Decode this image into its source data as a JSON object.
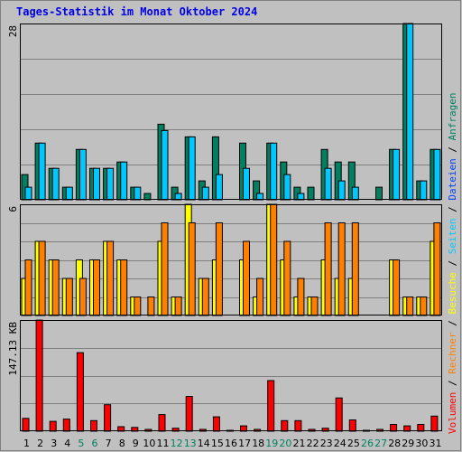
{
  "chart_data": {
    "type": "bar",
    "title": "Tages-Statistik im Monat Oktober 2024",
    "days": [
      "1",
      "2",
      "3",
      "4",
      "5",
      "6",
      "7",
      "8",
      "9",
      "10",
      "11",
      "12",
      "13",
      "14",
      "15",
      "16",
      "17",
      "18",
      "19",
      "20",
      "21",
      "22",
      "23",
      "24",
      "25",
      "26",
      "27",
      "28",
      "29",
      "30",
      "31"
    ],
    "weekend_days": [
      "5",
      "6",
      "12",
      "13",
      "19",
      "20",
      "26",
      "27"
    ],
    "panels": [
      {
        "max_label": "28",
        "ylim": [
          0,
          28
        ],
        "series": [
          {
            "name": "Anfragen",
            "color": "#008060",
            "values": [
              4,
              9,
              5,
              2,
              8,
              5,
              5,
              6,
              2,
              1,
              12,
              2,
              10,
              3,
              10,
              0,
              9,
              3,
              9,
              6,
              2,
              2,
              8,
              6,
              6,
              0,
              2,
              8,
              28,
              3,
              8
            ]
          },
          {
            "name": "Dateien",
            "color": "#00c8ff",
            "values": [
              2,
              9,
              5,
              2,
              8,
              5,
              5,
              6,
              2,
              0,
              11,
              1,
              10,
              2,
              4,
              0,
              5,
              1,
              9,
              4,
              1,
              0,
              5,
              3,
              2,
              0,
              0,
              8,
              28,
              3,
              8
            ]
          }
        ]
      },
      {
        "max_label": "6",
        "ylim": [
          0,
          6
        ],
        "series": [
          {
            "name": "Seiten",
            "color": "#ffff00",
            "values": [
              2,
              4,
              3,
              2,
              3,
              3,
              4,
              3,
              1,
              0,
              4,
              1,
              6,
              2,
              3,
              0,
              3,
              1,
              6,
              3,
              1,
              1,
              3,
              2,
              2,
              0,
              0,
              3,
              1,
              1,
              4
            ]
          },
          {
            "name": "Besuche",
            "color": "#ff8000",
            "values": [
              3,
              4,
              3,
              2,
              2,
              3,
              4,
              3,
              1,
              1,
              5,
              1,
              5,
              2,
              5,
              0,
              4,
              2,
              6,
              4,
              2,
              1,
              5,
              5,
              5,
              0,
              0,
              3,
              1,
              1,
              5
            ]
          }
        ]
      },
      {
        "max_label": "147.13 KB",
        "ylim": [
          0,
          147.13
        ],
        "series": [
          {
            "name": "Volumen",
            "color": "#ff0000",
            "values": [
              17,
              147,
              13,
              16,
              104,
              14,
              35,
              6,
              5,
              2,
              22,
              4,
              46,
              2,
              19,
              0,
              7,
              2,
              67,
              14,
              14,
              1,
              4,
              44,
              15,
              0,
              2,
              9,
              7,
              9,
              20
            ]
          }
        ]
      }
    ],
    "legend": [
      {
        "label": "Anfragen",
        "color": "#008060"
      },
      {
        "label": "Dateien",
        "color": "#0040ff"
      },
      {
        "label": "Seiten",
        "color": "#00c8ff"
      },
      {
        "label": "Besuche",
        "color": "#ffff00"
      },
      {
        "label": "Rechner",
        "color": "#ff8000"
      },
      {
        "label": "Volumen",
        "color": "#ff0000"
      }
    ],
    "legend_separator": " / "
  }
}
